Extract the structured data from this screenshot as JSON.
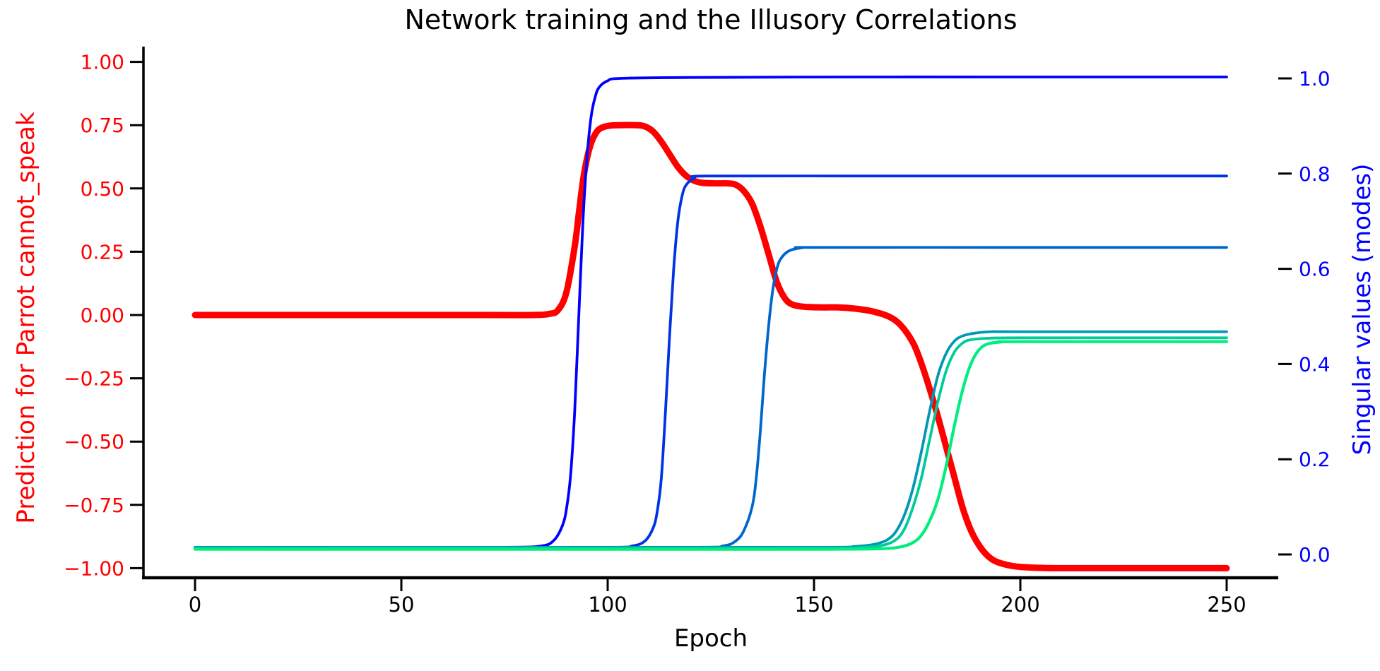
{
  "title": "Network training and the Illusory Correlations",
  "colors": {
    "background": "#ffffff",
    "spine": "#000000",
    "tick": "#000000",
    "left_axis": "#ff0000",
    "right_axis": "#0000ff",
    "title_color": "#000000"
  },
  "axes": {
    "x": {
      "label": "Epoch",
      "tick_labels": [
        "0",
        "50",
        "100",
        "150",
        "200",
        "250"
      ],
      "tick_values": [
        0,
        50,
        100,
        150,
        200,
        250
      ],
      "range": [
        0,
        250
      ]
    },
    "y_left": {
      "label": "Prediction for Parrot cannot_speak",
      "color": "#ff0000",
      "tick_labels": [
        "1.00",
        "0.75",
        "0.50",
        "0.25",
        "0.00",
        "−0.25",
        "−0.50",
        "−0.75",
        "−1.00"
      ],
      "tick_values": [
        1.0,
        0.75,
        0.5,
        0.25,
        0.0,
        -0.25,
        -0.5,
        -0.75,
        -1.0
      ],
      "range": [
        -1.0,
        1.0
      ]
    },
    "y_right": {
      "label": "Singular values (modes)",
      "color": "#0000ff",
      "tick_labels": [
        "1.0",
        "0.8",
        "0.6",
        "0.4",
        "0.2",
        "0.0"
      ],
      "tick_values": [
        1.0,
        0.8,
        0.6,
        0.4,
        0.2,
        0.0
      ],
      "range": [
        0.0,
        1.0
      ]
    }
  },
  "chart_data": {
    "type": "line",
    "title": "Network training and the Illusory Correlations",
    "xlabel": "Epoch",
    "ylabel_left": "Prediction for Parrot cannot_speak",
    "ylabel_right": "Singular values (modes)",
    "xlim": [
      -12.5,
      262.5
    ],
    "grid": false,
    "legend": "none",
    "series": [
      {
        "name": "prediction-parrot-cannot-speak",
        "axis": "left",
        "color": "#ff0000",
        "width": 9,
        "points": [
          [
            0,
            0
          ],
          [
            40,
            0
          ],
          [
            70,
            0
          ],
          [
            82,
            0
          ],
          [
            86,
            0.005
          ],
          [
            88,
            0.02
          ],
          [
            90,
            0.09
          ],
          [
            92,
            0.27
          ],
          [
            93,
            0.4
          ],
          [
            94,
            0.53
          ],
          [
            95,
            0.62
          ],
          [
            96,
            0.68
          ],
          [
            97,
            0.715
          ],
          [
            98,
            0.735
          ],
          [
            100,
            0.747
          ],
          [
            103,
            0.75
          ],
          [
            107,
            0.75
          ],
          [
            109,
            0.745
          ],
          [
            111,
            0.725
          ],
          [
            113,
            0.685
          ],
          [
            115,
            0.635
          ],
          [
            117,
            0.585
          ],
          [
            119,
            0.55
          ],
          [
            121,
            0.53
          ],
          [
            123,
            0.522
          ],
          [
            126,
            0.52
          ],
          [
            129,
            0.52
          ],
          [
            131,
            0.515
          ],
          [
            133,
            0.49
          ],
          [
            135,
            0.44
          ],
          [
            137,
            0.35
          ],
          [
            139,
            0.24
          ],
          [
            141,
            0.13
          ],
          [
            143,
            0.065
          ],
          [
            145,
            0.04
          ],
          [
            148,
            0.032
          ],
          [
            152,
            0.03
          ],
          [
            156,
            0.03
          ],
          [
            160,
            0.025
          ],
          [
            164,
            0.015
          ],
          [
            168,
            -0.005
          ],
          [
            171,
            -0.04
          ],
          [
            174,
            -0.11
          ],
          [
            176,
            -0.19
          ],
          [
            178,
            -0.29
          ],
          [
            180,
            -0.4
          ],
          [
            182,
            -0.52
          ],
          [
            184,
            -0.64
          ],
          [
            186,
            -0.76
          ],
          [
            188,
            -0.85
          ],
          [
            190,
            -0.91
          ],
          [
            192,
            -0.95
          ],
          [
            194,
            -0.973
          ],
          [
            197,
            -0.988
          ],
          [
            200,
            -0.995
          ],
          [
            205,
            -0.999
          ],
          [
            210,
            -1.0
          ],
          [
            230,
            -1.0
          ],
          [
            250,
            -1.0
          ]
        ]
      },
      {
        "name": "mode-1",
        "axis": "right",
        "color": "#0000ff",
        "width": 3.8,
        "plateau": 1.0,
        "transition_epoch": 93,
        "points": [
          [
            0,
            0.015
          ],
          [
            40,
            0.015
          ],
          [
            75,
            0.015
          ],
          [
            84,
            0.018
          ],
          [
            87,
            0.03
          ],
          [
            89,
            0.06
          ],
          [
            90,
            0.095
          ],
          [
            91,
            0.165
          ],
          [
            92,
            0.3
          ],
          [
            93,
            0.5
          ],
          [
            94,
            0.7
          ],
          [
            95,
            0.835
          ],
          [
            96,
            0.92
          ],
          [
            97,
            0.962
          ],
          [
            98,
            0.982
          ],
          [
            100,
            0.995
          ],
          [
            103,
            1.0
          ],
          [
            120,
            1.002
          ],
          [
            160,
            1.003
          ],
          [
            200,
            1.003
          ],
          [
            250,
            1.003
          ]
        ]
      },
      {
        "name": "mode-2",
        "axis": "right",
        "color": "#0033e6",
        "width": 3.8,
        "plateau": 0.795,
        "transition_epoch": 114.5,
        "points": [
          [
            0,
            0.015
          ],
          [
            60,
            0.015
          ],
          [
            100,
            0.015
          ],
          [
            106,
            0.018
          ],
          [
            109,
            0.028
          ],
          [
            111,
            0.055
          ],
          [
            112,
            0.09
          ],
          [
            113,
            0.16
          ],
          [
            114,
            0.3
          ],
          [
            115,
            0.46
          ],
          [
            116,
            0.6
          ],
          [
            117,
            0.7
          ],
          [
            118,
            0.752
          ],
          [
            119,
            0.776
          ],
          [
            121,
            0.79
          ],
          [
            124,
            0.795
          ],
          [
            160,
            0.795
          ],
          [
            200,
            0.795
          ],
          [
            250,
            0.795
          ]
        ]
      },
      {
        "name": "mode-3",
        "axis": "right",
        "color": "#0066cc",
        "width": 3.8,
        "plateau": 0.645,
        "transition_epoch": 137.5,
        "points": [
          [
            0,
            0.015
          ],
          [
            60,
            0.015
          ],
          [
            120,
            0.015
          ],
          [
            128,
            0.018
          ],
          [
            131,
            0.028
          ],
          [
            133,
            0.05
          ],
          [
            135,
            0.1
          ],
          [
            136,
            0.16
          ],
          [
            137,
            0.26
          ],
          [
            138,
            0.38
          ],
          [
            139,
            0.48
          ],
          [
            140,
            0.555
          ],
          [
            141,
            0.6
          ],
          [
            142,
            0.622
          ],
          [
            144,
            0.638
          ],
          [
            147,
            0.644
          ],
          [
            150,
            0.645
          ],
          [
            200,
            0.645
          ],
          [
            250,
            0.645
          ]
        ]
      },
      {
        "name": "mode-4",
        "axis": "right",
        "color": "#0099b3",
        "width": 3.8,
        "plateau": 0.468,
        "transition_epoch": 176,
        "points": [
          [
            0,
            0.015
          ],
          [
            80,
            0.015
          ],
          [
            150,
            0.015
          ],
          [
            160,
            0.017
          ],
          [
            165,
            0.022
          ],
          [
            168,
            0.032
          ],
          [
            170,
            0.05
          ],
          [
            172,
            0.085
          ],
          [
            174,
            0.14
          ],
          [
            176,
            0.215
          ],
          [
            178,
            0.3
          ],
          [
            180,
            0.375
          ],
          [
            182,
            0.422
          ],
          [
            184,
            0.448
          ],
          [
            186,
            0.459
          ],
          [
            189,
            0.465
          ],
          [
            193,
            0.468
          ],
          [
            200,
            0.468
          ],
          [
            250,
            0.468
          ]
        ]
      },
      {
        "name": "mode-5",
        "axis": "right",
        "color": "#00cc99",
        "width": 3.8,
        "plateau": 0.455,
        "transition_epoch": 178.5,
        "points": [
          [
            0,
            0.013
          ],
          [
            80,
            0.013
          ],
          [
            150,
            0.013
          ],
          [
            162,
            0.015
          ],
          [
            167,
            0.02
          ],
          [
            170,
            0.032
          ],
          [
            172,
            0.055
          ],
          [
            174,
            0.1
          ],
          [
            176,
            0.16
          ],
          [
            178,
            0.24
          ],
          [
            180,
            0.32
          ],
          [
            182,
            0.385
          ],
          [
            184,
            0.425
          ],
          [
            186,
            0.444
          ],
          [
            188,
            0.451
          ],
          [
            192,
            0.454
          ],
          [
            200,
            0.455
          ],
          [
            250,
            0.455
          ]
        ]
      },
      {
        "name": "mode-6",
        "axis": "right",
        "color": "#00ee7d",
        "width": 4.2,
        "plateau": 0.447,
        "transition_epoch": 182.5,
        "points": [
          [
            0,
            0.011
          ],
          [
            80,
            0.011
          ],
          [
            150,
            0.011
          ],
          [
            166,
            0.012
          ],
          [
            171,
            0.016
          ],
          [
            174,
            0.025
          ],
          [
            176,
            0.04
          ],
          [
            178,
            0.07
          ],
          [
            180,
            0.115
          ],
          [
            182,
            0.185
          ],
          [
            184,
            0.27
          ],
          [
            186,
            0.345
          ],
          [
            188,
            0.4
          ],
          [
            190,
            0.43
          ],
          [
            192,
            0.442
          ],
          [
            195,
            0.446
          ],
          [
            200,
            0.447
          ],
          [
            250,
            0.447
          ]
        ]
      }
    ]
  }
}
